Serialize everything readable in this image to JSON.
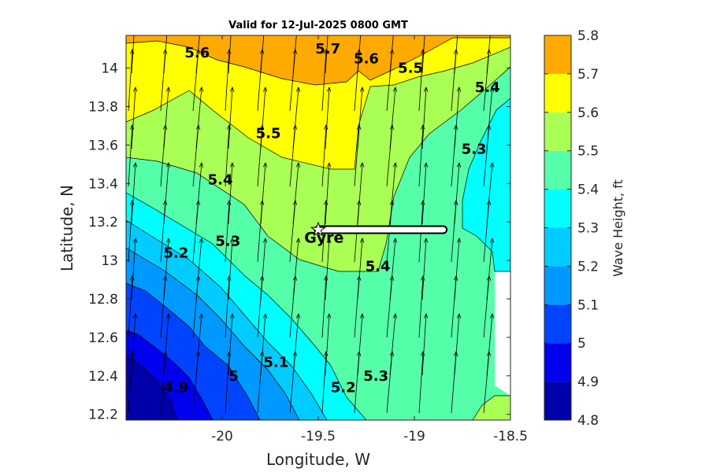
{
  "chart_data": {
    "type": "contour",
    "title": "Valid for 12-Jul-2025 0800 GMT",
    "xlabel": "Longitude, W",
    "ylabel": "Latitude, N",
    "xlim": [
      -20.5,
      -18.5
    ],
    "ylim": [
      12.17,
      14.17
    ],
    "xticks": [
      -20,
      -19.5,
      -19,
      -18.5
    ],
    "xtick_labels": [
      "-20",
      "-19.5",
      "-19",
      "-18.5"
    ],
    "yticks": [
      12.2,
      12.4,
      12.6,
      12.8,
      13.0,
      13.2,
      13.4,
      13.6,
      13.8,
      14.0
    ],
    "ytick_labels": [
      "12.2",
      "12.4",
      "12.6",
      "12.8",
      "13",
      "13.2",
      "13.4",
      "13.6",
      "13.8",
      "14"
    ],
    "colorbar": {
      "label": "Wave Height, ft",
      "levels": [
        4.8,
        4.9,
        5.0,
        5.1,
        5.2,
        5.3,
        5.4,
        5.5,
        5.6,
        5.7,
        5.8
      ],
      "tick_labels": [
        "4.8",
        "4.9",
        "5",
        "5.1",
        "5.2",
        "5.3",
        "5.4",
        "5.5",
        "5.6",
        "5.7",
        "5.8"
      ],
      "colors": [
        "#0000aa",
        "#0000ee",
        "#0044ff",
        "#0099ff",
        "#00ccff",
        "#00ffff",
        "#55ffaa",
        "#aaff55",
        "#ffff00",
        "#ffaa00",
        "#ff5500"
      ]
    },
    "contour_labels": [
      {
        "text": "5.7",
        "lon": -19.45,
        "lat": 14.1
      },
      {
        "text": "5.6",
        "lon": -20.13,
        "lat": 14.08
      },
      {
        "text": "5.6",
        "lon": -19.25,
        "lat": 14.05
      },
      {
        "text": "5.5",
        "lon": -19.02,
        "lat": 14.0
      },
      {
        "text": "5.5",
        "lon": -19.76,
        "lat": 13.66
      },
      {
        "text": "5.4",
        "lon": -18.62,
        "lat": 13.9
      },
      {
        "text": "5.4",
        "lon": -20.01,
        "lat": 13.42
      },
      {
        "text": "5.4",
        "lon": -19.19,
        "lat": 12.97
      },
      {
        "text": "5.3",
        "lon": -18.69,
        "lat": 13.58
      },
      {
        "text": "5.3",
        "lon": -19.97,
        "lat": 13.1
      },
      {
        "text": "5.3",
        "lon": -19.2,
        "lat": 12.4
      },
      {
        "text": "5.2",
        "lon": -20.24,
        "lat": 13.04
      },
      {
        "text": "5.2",
        "lon": -19.37,
        "lat": 12.34
      },
      {
        "text": "5.1",
        "lon": -19.72,
        "lat": 12.47
      },
      {
        "text": "5",
        "lon": -19.94,
        "lat": 12.4
      },
      {
        "text": "4.9",
        "lon": -20.24,
        "lat": 12.34
      }
    ],
    "annotations": [
      {
        "text": "Gyre",
        "lon": -19.47,
        "lat": 13.12
      }
    ],
    "track": {
      "from": [
        -19.5,
        13.16
      ],
      "to": [
        -18.85,
        13.16
      ]
    },
    "wind_vectors": "northward, tilted slightly east"
  }
}
